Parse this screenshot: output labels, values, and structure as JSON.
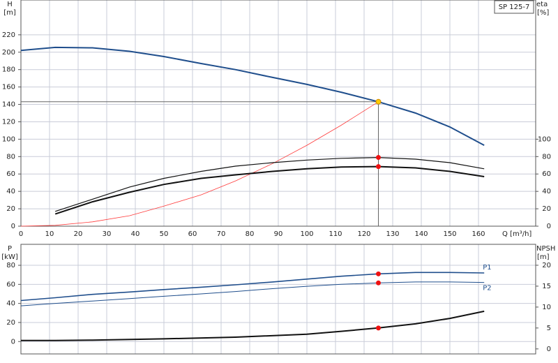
{
  "chart_data": [
    {
      "type": "line",
      "title": "SP 125-7",
      "y_label": "H",
      "y_unit": "[m]",
      "y2_label": "eta",
      "y2_unit": "[%]",
      "x_label": "Q [m³/h]",
      "xlim": [
        0,
        180
      ],
      "xticks": [
        0,
        10,
        20,
        30,
        40,
        50,
        60,
        70,
        80,
        90,
        100,
        110,
        120,
        130,
        140,
        150,
        160
      ],
      "ylim": [
        0,
        260
      ],
      "yticks": [
        0,
        20,
        40,
        60,
        80,
        100,
        120,
        140,
        160,
        180,
        200,
        220
      ],
      "y2lim": [
        0,
        260
      ],
      "y2ticks": [
        0,
        20,
        40,
        60,
        80,
        100
      ],
      "grid": true,
      "show_xtick_labels": true,
      "series": [
        {
          "color": "#1f4e8c",
          "width": 2,
          "x": [
            0,
            12,
            25,
            38,
            50,
            63,
            75,
            88,
            100,
            112,
            125,
            138,
            150,
            162
          ],
          "values": [
            202,
            205.5,
            205,
            201,
            195,
            187,
            180,
            171,
            163,
            154,
            143,
            130,
            114,
            93
          ]
        },
        {
          "color": "#ff3a3a",
          "width": 0.8,
          "x": [
            0,
            12,
            25,
            38,
            50,
            63,
            75,
            88,
            100,
            112,
            125
          ],
          "values": [
            0,
            1,
            5,
            12,
            23,
            36,
            52,
            72,
            93,
            116,
            143
          ]
        },
        {
          "color": "#111111",
          "width": 1.2,
          "axis": "y2",
          "x": [
            12,
            25,
            38,
            50,
            63,
            75,
            88,
            100,
            112,
            125,
            138,
            150,
            162
          ],
          "values": [
            17,
            31,
            45,
            55,
            63,
            69,
            73,
            76,
            78,
            79,
            77,
            73,
            66
          ]
        },
        {
          "color": "#111111",
          "width": 2,
          "axis": "y2",
          "x": [
            12,
            25,
            38,
            50,
            63,
            75,
            88,
            100,
            112,
            125,
            138,
            150,
            162
          ],
          "values": [
            14,
            28,
            39,
            48,
            55,
            59,
            63,
            66,
            68,
            68.5,
            67,
            63,
            57
          ]
        }
      ],
      "markers": [
        {
          "x": 125,
          "y": 143,
          "color": "#ffcc00",
          "duty_lines": true
        },
        {
          "x": 125,
          "y": 79,
          "color": "#ee1111",
          "axis": "y2"
        },
        {
          "x": 125,
          "y": 68.5,
          "color": "#ee1111",
          "axis": "y2"
        }
      ]
    },
    {
      "type": "line",
      "y_label": "P",
      "y_unit": "[kW]",
      "y2_label": "NPSH",
      "y2_unit": "[m]",
      "xlim": [
        0,
        180
      ],
      "xticks": [
        0,
        10,
        20,
        30,
        40,
        50,
        60,
        70,
        80,
        90,
        100,
        110,
        120,
        130,
        140,
        150,
        160
      ],
      "ylim": [
        -13,
        102
      ],
      "yticks": [
        0,
        20,
        40,
        60,
        80
      ],
      "y2lim": [
        -1.2,
        25
      ],
      "y2ticks": [
        0,
        5,
        10,
        15,
        20
      ],
      "grid": true,
      "show_xtick_labels": false,
      "series": [
        {
          "name": "P1",
          "color": "#1f4e8c",
          "width": 1.6,
          "x": [
            0,
            12,
            25,
            38,
            50,
            63,
            75,
            88,
            100,
            112,
            125,
            138,
            150,
            162
          ],
          "values": [
            43,
            46,
            49.5,
            52,
            54.5,
            57,
            59.5,
            62.5,
            65.5,
            68.5,
            71,
            72.5,
            72.5,
            72
          ]
        },
        {
          "name": "P2",
          "color": "#1f4e8c",
          "width": 1,
          "x": [
            0,
            12,
            25,
            38,
            50,
            63,
            75,
            88,
            100,
            112,
            125,
            138,
            150,
            162
          ],
          "values": [
            37.5,
            40,
            42.5,
            45,
            47.5,
            50,
            52.5,
            55.5,
            58,
            60,
            61.5,
            62.5,
            62.5,
            62
          ]
        },
        {
          "color": "#111111",
          "width": 2,
          "axis": "y2",
          "x": [
            0,
            12,
            25,
            50,
            75,
            100,
            112,
            125,
            138,
            150,
            162
          ],
          "values": [
            2,
            2,
            2.1,
            2.4,
            2.8,
            3.5,
            4.2,
            5,
            6,
            7.3,
            9
          ]
        }
      ],
      "markers": [
        {
          "x": 125,
          "y": 71,
          "color": "#ee1111"
        },
        {
          "x": 125,
          "y": 61.5,
          "color": "#ee1111"
        },
        {
          "x": 125,
          "y": 5,
          "color": "#ee1111",
          "axis": "y2"
        }
      ]
    }
  ]
}
